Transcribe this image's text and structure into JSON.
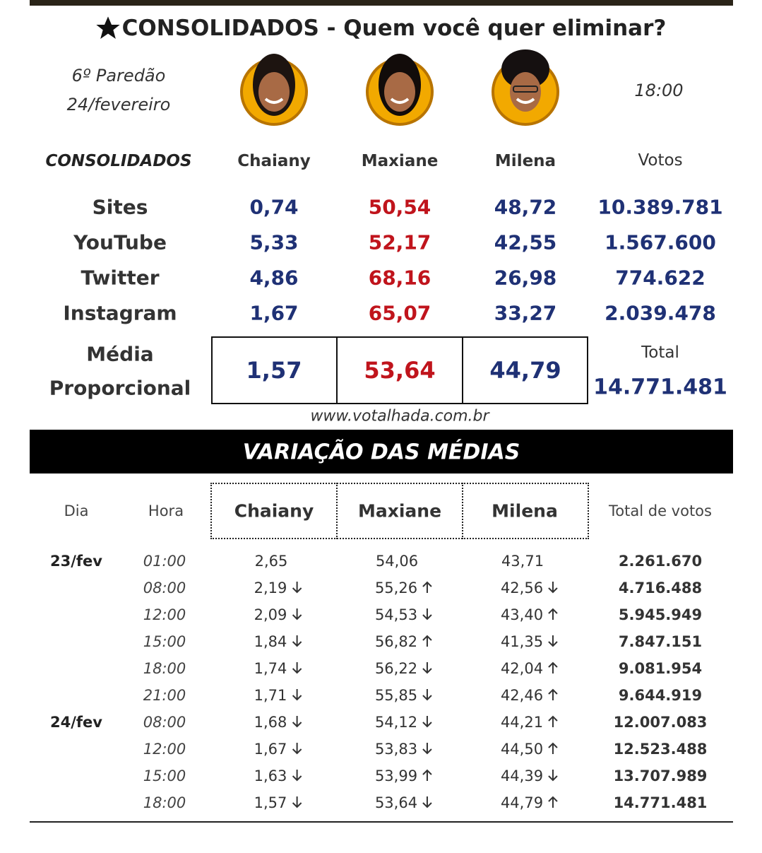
{
  "header": {
    "title": "CONSOLIDADOS - Quem você quer eliminar?",
    "round": "6º Paredão",
    "date": "24/fevereiro",
    "time": "18:00"
  },
  "consolidated": {
    "label": "CONSOLIDADOS",
    "candidates": [
      "Chaiany",
      "Maxiane",
      "Milena"
    ],
    "votes_header": "Votos",
    "rows": [
      {
        "source": "Sites",
        "values": [
          "0,74",
          "50,54",
          "48,72"
        ],
        "votes": "10.389.781"
      },
      {
        "source": "YouTube",
        "values": [
          "5,33",
          "52,17",
          "42,55"
        ],
        "votes": "1.567.600"
      },
      {
        "source": "Twitter",
        "values": [
          "4,86",
          "68,16",
          "26,98"
        ],
        "votes": "774.622"
      },
      {
        "source": "Instagram",
        "values": [
          "1,67",
          "65,07",
          "33,27"
        ],
        "votes": "2.039.478"
      }
    ],
    "average_label": [
      "Média",
      "Proporcional"
    ],
    "average": [
      "1,57",
      "53,64",
      "44,79"
    ],
    "total_label": "Total",
    "total": "14.771.481",
    "source_url": "www.votalhada.com.br"
  },
  "variation": {
    "title": "VARIAÇÃO DAS MÉDIAS",
    "headers": [
      "Dia",
      "Hora",
      "Chaiany",
      "Maxiane",
      "Milena",
      "Total de votos"
    ],
    "rows": [
      {
        "day": "23/fev",
        "hour": "01:00",
        "values": [
          "2,65",
          "54,06",
          "43,71"
        ],
        "total": "2.261.670"
      },
      {
        "hour": "08:00",
        "values": [
          "2,19",
          "55,26",
          "42,56"
        ],
        "trends": [
          "down",
          "up",
          "down"
        ],
        "total": "4.716.488"
      },
      {
        "hour": "12:00",
        "values": [
          "2,09",
          "54,53",
          "43,40"
        ],
        "trends": [
          "down",
          "down",
          "up"
        ],
        "total": "5.945.949"
      },
      {
        "hour": "15:00",
        "values": [
          "1,84",
          "56,82",
          "41,35"
        ],
        "trends": [
          "down",
          "up",
          "down"
        ],
        "total": "7.847.151"
      },
      {
        "hour": "18:00",
        "values": [
          "1,74",
          "56,22",
          "42,04"
        ],
        "trends": [
          "down",
          "down",
          "up"
        ],
        "total": "9.081.954"
      },
      {
        "hour": "21:00",
        "values": [
          "1,71",
          "55,85",
          "42,46"
        ],
        "trends": [
          "down",
          "down",
          "up"
        ],
        "total": "9.644.919"
      },
      {
        "day": "24/fev",
        "hour": "08:00",
        "values": [
          "1,68",
          "54,12",
          "44,21"
        ],
        "trends": [
          "down",
          "down",
          "up"
        ],
        "total": "12.007.083"
      },
      {
        "hour": "12:00",
        "values": [
          "1,67",
          "53,83",
          "44,50"
        ],
        "trends": [
          "down",
          "down",
          "up"
        ],
        "total": "12.523.488"
      },
      {
        "hour": "15:00",
        "values": [
          "1,63",
          "53,99",
          "44,39"
        ],
        "trends": [
          "down",
          "up",
          "down"
        ],
        "total": "13.707.989"
      },
      {
        "hour": "18:00",
        "values": [
          "1,57",
          "53,64",
          "44,79"
        ],
        "trends": [
          "down",
          "down",
          "up"
        ],
        "total": "14.771.481"
      }
    ]
  }
}
